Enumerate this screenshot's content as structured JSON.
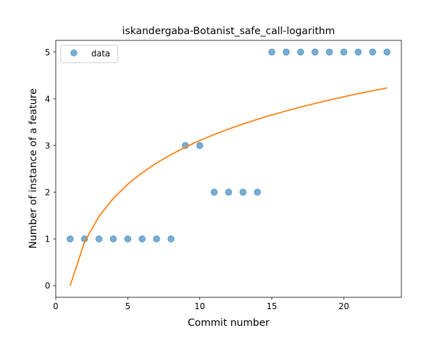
{
  "chart_data": {
    "type": "scatter",
    "title": "iskandergaba-Botanist_safe_call-logarithm",
    "xlabel": "Commit number",
    "ylabel": "Number of instance of a feature",
    "xlim": [
      0,
      24
    ],
    "ylim": [
      -0.25,
      5.25
    ],
    "xticks": [
      0,
      5,
      10,
      15,
      20
    ],
    "yticks": [
      0,
      1,
      2,
      3,
      4,
      5
    ],
    "grid": false,
    "legend": {
      "placement": "top-left",
      "entries": [
        "data"
      ]
    },
    "series": [
      {
        "name": "data",
        "kind": "scatter",
        "color": "#1f77b4",
        "x": [
          1,
          2,
          3,
          4,
          5,
          6,
          7,
          8,
          9,
          10,
          11,
          12,
          13,
          14,
          15,
          16,
          17,
          18,
          19,
          20,
          21,
          22,
          23
        ],
        "y": [
          1,
          1,
          1,
          1,
          1,
          1,
          1,
          1,
          3,
          3,
          2,
          2,
          2,
          2,
          5,
          5,
          5,
          5,
          5,
          5,
          5,
          5,
          5
        ]
      },
      {
        "kind": "line",
        "color": "#ff7f0e",
        "x": [
          1,
          2,
          3,
          4,
          5,
          6,
          7,
          8,
          9,
          10,
          11,
          12,
          13,
          14,
          15,
          16,
          17,
          18,
          19,
          20,
          21,
          22,
          23
        ],
        "y": [
          0.0,
          0.935,
          1.482,
          1.87,
          2.171,
          2.417,
          2.625,
          2.805,
          2.964,
          3.106,
          3.235,
          3.352,
          3.46,
          3.56,
          3.653,
          3.74,
          3.823,
          3.9,
          3.973,
          4.043,
          4.109,
          4.172,
          4.232
        ]
      }
    ]
  }
}
